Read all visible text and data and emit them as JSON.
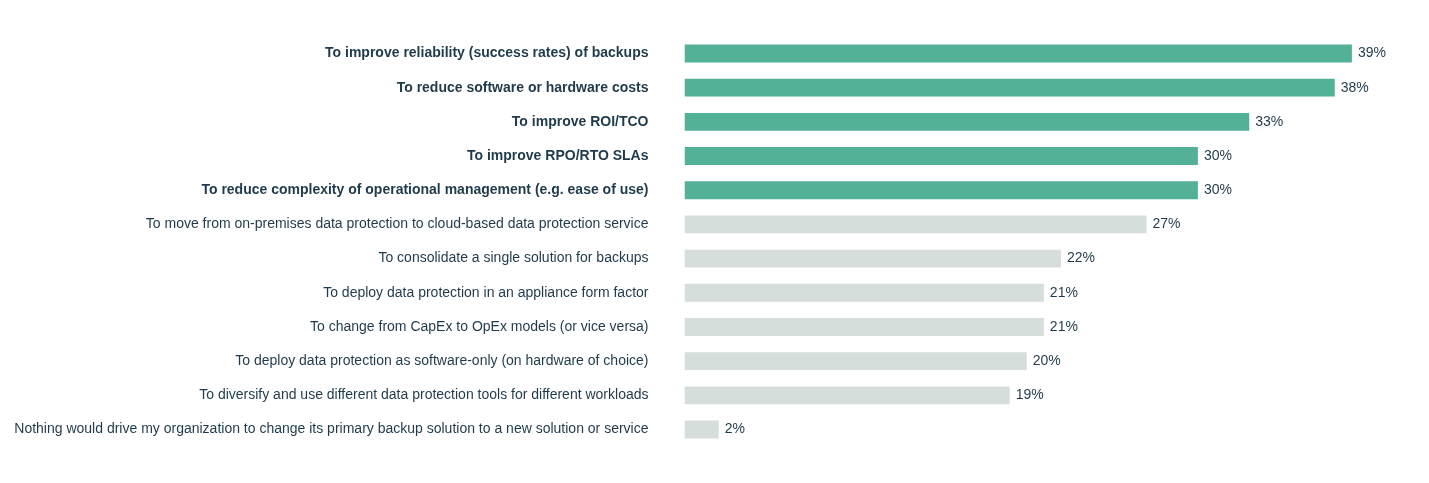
{
  "chart_data": {
    "type": "bar",
    "orientation": "horizontal",
    "categories": [
      "To improve reliability (success rates) of backups",
      "To reduce software or hardware costs",
      "To improve ROI/TCO",
      "To improve RPO/RTO SLAs",
      "To reduce complexity of operational management (e.g. ease of use)",
      "To move from on-premises data protection to cloud-based data protection service",
      "To consolidate a single solution for backups",
      "To deploy data protection in an appliance form factor",
      "To change from CapEx to OpEx models (or vice versa)",
      "To deploy data protection as software-only (on hardware of choice)",
      "To diversify and use different data protection tools for different workloads",
      "Nothing would drive my organization to change its primary backup solution to a new solution or service"
    ],
    "values": [
      39,
      38,
      33,
      30,
      30,
      27,
      22,
      21,
      21,
      20,
      19,
      2
    ],
    "value_labels": [
      "39%",
      "38%",
      "33%",
      "30%",
      "30%",
      "27%",
      "22%",
      "21%",
      "21%",
      "20%",
      "19%",
      "2%"
    ],
    "colors": [
      "#52b197",
      "#52b197",
      "#52b197",
      "#52b197",
      "#52b197",
      "#d5dedb",
      "#d5dedb",
      "#d5dedb",
      "#d5dedb",
      "#d5dedb",
      "#d5dedb",
      "#d5dedb"
    ],
    "legend": false
  }
}
